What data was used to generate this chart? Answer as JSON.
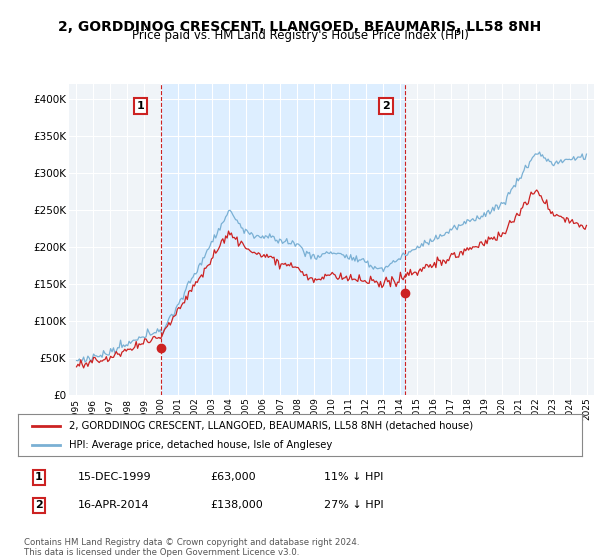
{
  "title": "2, GORDDINOG CRESCENT, LLANGOED, BEAUMARIS, LL58 8NH",
  "subtitle": "Price paid vs. HM Land Registry's House Price Index (HPI)",
  "title_fontsize": 10,
  "subtitle_fontsize": 8.5,
  "background_color": "#ffffff",
  "plot_bg_color": "#f0f4f8",
  "grid_color": "#ffffff",
  "hpi_color": "#7ab0d4",
  "price_color": "#cc2222",
  "shade_color": "#ddeeff",
  "annotation_box_color": "#cc2222",
  "legend_label_price": "2, GORDDINOG CRESCENT, LLANGOED, BEAUMARIS, LL58 8NH (detached house)",
  "legend_label_hpi": "HPI: Average price, detached house, Isle of Anglesey",
  "transaction1_date": "15-DEC-1999",
  "transaction1_price": "£63,000",
  "transaction1_hpi": "11% ↓ HPI",
  "transaction1_year": 2000.0,
  "transaction1_value": 63000,
  "transaction2_date": "16-APR-2014",
  "transaction2_price": "£138,000",
  "transaction2_hpi": "27% ↓ HPI",
  "transaction2_year": 2014.3,
  "transaction2_value": 138000,
  "footer": "Contains HM Land Registry data © Crown copyright and database right 2024.\nThis data is licensed under the Open Government Licence v3.0.",
  "ylim": [
    0,
    420000
  ],
  "yticks": [
    0,
    50000,
    100000,
    150000,
    200000,
    250000,
    300000,
    350000,
    400000
  ],
  "ytick_labels": [
    "£0",
    "£50K",
    "£100K",
    "£150K",
    "£200K",
    "£250K",
    "£300K",
    "£350K",
    "£400K"
  ],
  "xlim_start": 1994.6,
  "xlim_end": 2025.4
}
